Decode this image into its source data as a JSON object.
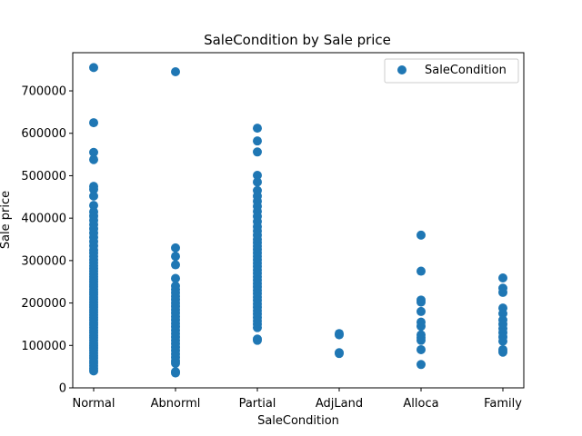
{
  "chart_data": {
    "type": "scatter",
    "title": "SaleCondition by Sale price",
    "xlabel": "SaleCondition",
    "ylabel": "Sale price",
    "categories": [
      "Normal",
      "Abnorml",
      "Partial",
      "AdjLand",
      "Alloca",
      "Family"
    ],
    "ylim": [
      0,
      790000
    ],
    "yticks": [
      0,
      100000,
      200000,
      300000,
      400000,
      500000,
      600000,
      700000
    ],
    "legend": {
      "position": "top-right",
      "entries": [
        "SaleCondition"
      ]
    },
    "color": "#1f77b4",
    "grid": false,
    "series": [
      {
        "name": "SaleCondition",
        "points": [
          {
            "category": "Normal",
            "values": [
              755000,
              625000,
              555000,
              538000,
              475000,
              468000,
              452000,
              430000,
              415000,
              405000,
              395000,
              385000,
              375000,
              365000,
              355000,
              345000,
              335000,
              325000,
              318000,
              310000,
              302000,
              295000,
              288000,
              281000,
              275000,
              268000,
              262000,
              256000,
              250000,
              244000,
              238000,
              232000,
              226000,
              220000,
              214000,
              208000,
              202000,
              196000,
              190000,
              184000,
              178000,
              172000,
              166000,
              160000,
              154000,
              148000,
              142000,
              136000,
              130000,
              124000,
              118000,
              112000,
              106000,
              100000,
              94000,
              88000,
              82000,
              76000,
              70000,
              64000,
              58000,
              52000,
              46000,
              40000
            ]
          },
          {
            "category": "Abnorml",
            "values": [
              745000,
              330000,
              310000,
              290000,
              258000,
              240000,
              232000,
              224000,
              216000,
              208000,
              200000,
              192000,
              184000,
              176000,
              168000,
              160000,
              152000,
              144000,
              136000,
              128000,
              120000,
              112000,
              104000,
              96000,
              88000,
              80000,
              72000,
              64000,
              58000,
              38000,
              35000
            ]
          },
          {
            "category": "Partial",
            "values": [
              612000,
              582000,
              556000,
              501000,
              485000,
              465000,
              452000,
              440000,
              428000,
              416000,
              404000,
              392000,
              380000,
              370000,
              360000,
              350000,
              342000,
              334000,
              326000,
              318000,
              310000,
              302000,
              294000,
              286000,
              278000,
              270000,
              262000,
              254000,
              246000,
              238000,
              230000,
              222000,
              214000,
              206000,
              198000,
              190000,
              182000,
              174000,
              166000,
              158000,
              150000,
              142000,
              115000,
              112000
            ]
          },
          {
            "category": "AdjLand",
            "values": [
              128000,
              125000,
              83000,
              81000
            ]
          },
          {
            "category": "Alloca",
            "values": [
              360000,
              275000,
              207000,
              202000,
              180000,
              155000,
              145000,
              125000,
              118000,
              112000,
              90000,
              55000
            ]
          },
          {
            "category": "Family",
            "values": [
              259000,
              235000,
              225000,
              188000,
              175000,
              160000,
              150000,
              140000,
              130000,
              120000,
              110000,
              90000,
              84000
            ]
          }
        ]
      }
    ]
  }
}
